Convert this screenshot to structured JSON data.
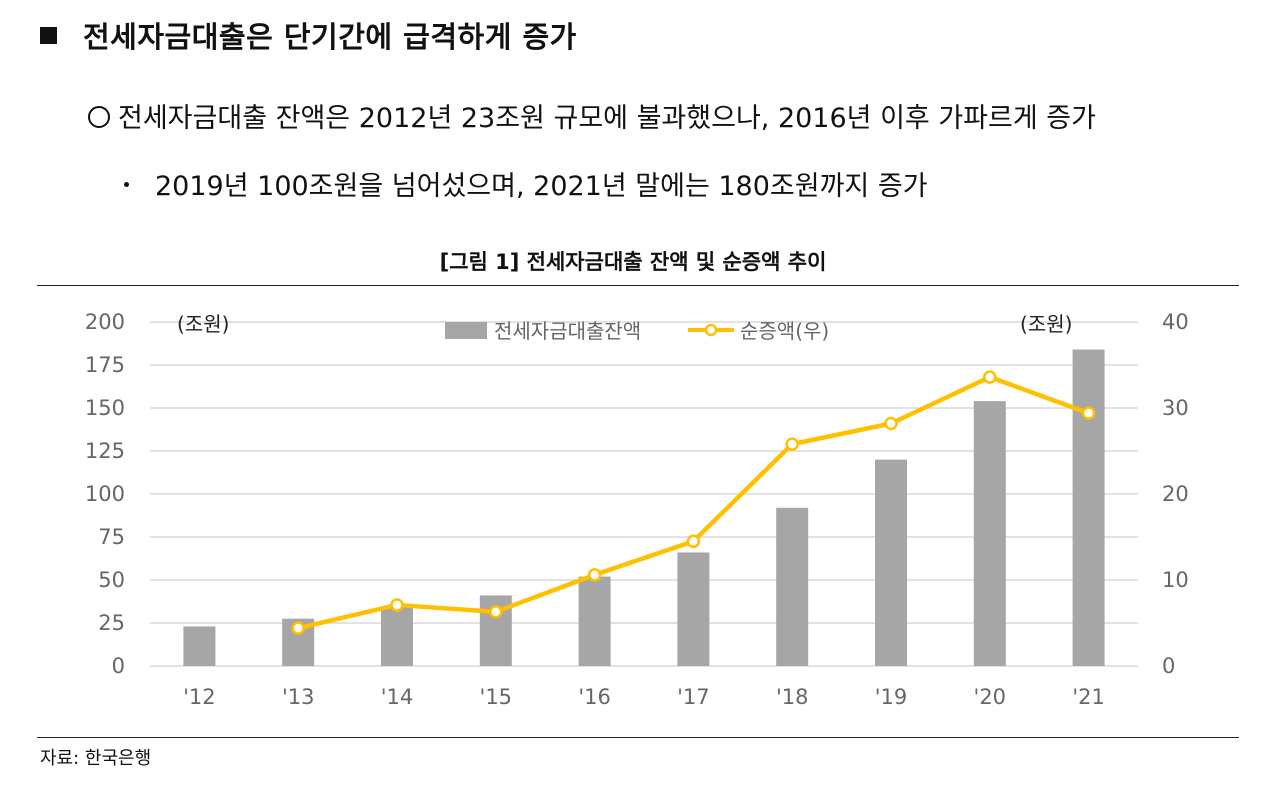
{
  "header": {
    "headline": "전세자금대출은 단기간에 급격하게 증가",
    "bullet1": "전세자금대출 잔액은 2012년 23조원 규모에 불과했으나, 2016년 이후 가파르게 증가",
    "bullet2": "2019년 100조원을 넘어섰으며, 2021년 말에는 180조원까지 증가"
  },
  "figure": {
    "title": "[그림 1] 전세자금대출 잔액 및 순증액 추이",
    "source": "자료: 한국은행"
  },
  "colors": {
    "bar": "#a6a6a6",
    "line": "#ffc000",
    "grid": "#d9d9d9"
  },
  "chart_data": {
    "type": "bar",
    "categories": [
      "'12",
      "'13",
      "'14",
      "'15",
      "'16",
      "'17",
      "'18",
      "'19",
      "'20",
      "'21"
    ],
    "series": [
      {
        "name": "전세자금대출잔액",
        "type": "bar",
        "axis": "left",
        "values": [
          23,
          27.5,
          34,
          41,
          52,
          66,
          92,
          120,
          154,
          184
        ]
      },
      {
        "name": "순증액(우)",
        "type": "line",
        "axis": "right",
        "values": [
          null,
          4.4,
          7.1,
          6.3,
          10.6,
          14.5,
          25.8,
          28.2,
          33.6,
          29.4
        ]
      }
    ],
    "left_axis": {
      "unit": "(조원)",
      "range": [
        0,
        200
      ],
      "ticks": [
        0,
        25,
        50,
        75,
        100,
        125,
        150,
        175,
        200
      ]
    },
    "right_axis": {
      "unit": "(조원)",
      "range": [
        0,
        40
      ],
      "ticks": [
        0,
        10,
        20,
        30,
        40
      ]
    },
    "legend_position": "top-center",
    "grid": true
  }
}
